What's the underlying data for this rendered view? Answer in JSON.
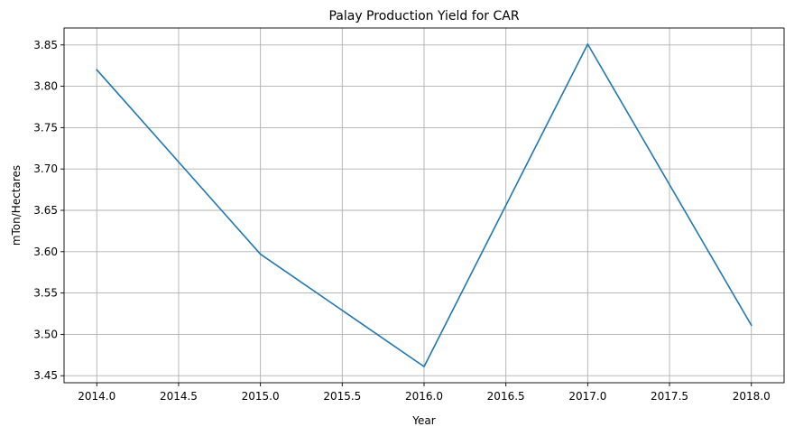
{
  "chart_data": {
    "type": "line",
    "title": "Palay Production Yield for CAR",
    "xlabel": "Year",
    "ylabel": "mTon/Hectares",
    "x": [
      2014,
      2015,
      2016,
      2017,
      2018
    ],
    "series": [
      {
        "values": [
          3.82,
          3.597,
          3.461,
          3.851,
          3.511
        ],
        "color": "#1f77b4"
      }
    ],
    "xlim": [
      2013.8,
      2018.2
    ],
    "ylim": [
      3.4415,
      3.8705
    ],
    "xticks": [
      2014.0,
      2014.5,
      2015.0,
      2015.5,
      2016.0,
      2016.5,
      2017.0,
      2017.5,
      2018.0
    ],
    "xtick_labels": [
      "2014.0",
      "2014.5",
      "2015.0",
      "2015.5",
      "2016.0",
      "2016.5",
      "2017.0",
      "2017.5",
      "2018.0"
    ],
    "yticks": [
      3.45,
      3.5,
      3.55,
      3.6,
      3.65,
      3.7,
      3.75,
      3.8,
      3.85
    ],
    "ytick_labels": [
      "3.45",
      "3.50",
      "3.55",
      "3.60",
      "3.65",
      "3.70",
      "3.75",
      "3.80",
      "3.85"
    ],
    "grid": true
  }
}
